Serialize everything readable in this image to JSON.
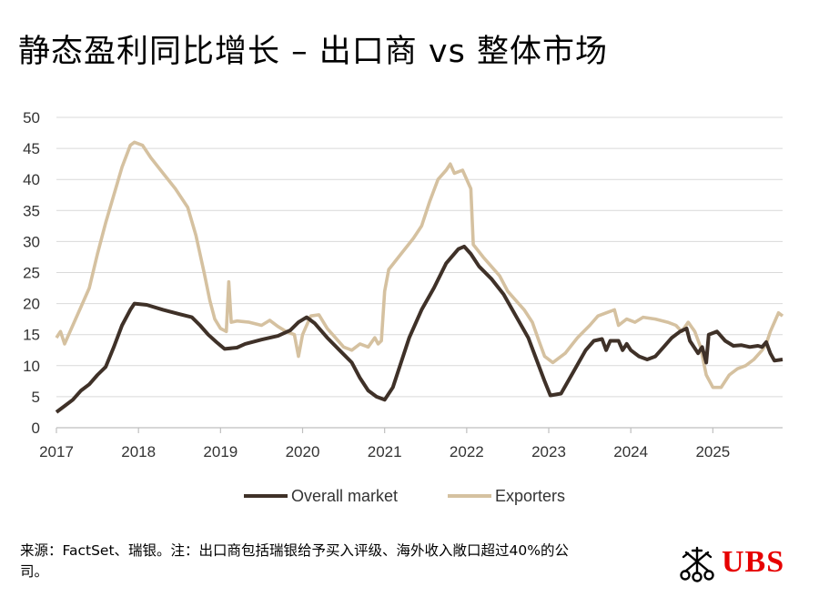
{
  "title": "静态盈利同比增长 – 出口商 vs 整体市场",
  "source_note": "来源：FactSet、瑞银。注：出口商包括瑞银给予买入评级、海外收入敞口超过40%的公司。",
  "logo": {
    "text": "UBS",
    "color": "#e60000",
    "emblem": "ubs-keys-emblem"
  },
  "chart_data": {
    "type": "line",
    "title": "静态盈利同比增长 – 出口商 vs 整体市场",
    "xlabel": "",
    "ylabel": "",
    "xlim": [
      2017.0,
      2025.85
    ],
    "ylim": [
      0,
      50
    ],
    "yticks": [
      "0",
      "5",
      "10",
      "15",
      "20",
      "25",
      "30",
      "35",
      "40",
      "45",
      "50"
    ],
    "xticks": [
      "2017",
      "2018",
      "2019",
      "2020",
      "2021",
      "2022",
      "2023",
      "2024",
      "2025"
    ],
    "grid": true,
    "legend": "bottom-center",
    "series": [
      {
        "name": "Overall market",
        "color": "#3f3128",
        "points": [
          [
            2017.0,
            2.5
          ],
          [
            2017.1,
            3.5
          ],
          [
            2017.2,
            4.5
          ],
          [
            2017.3,
            6.0
          ],
          [
            2017.4,
            7.0
          ],
          [
            2017.5,
            8.5
          ],
          [
            2017.6,
            9.8
          ],
          [
            2017.7,
            13.0
          ],
          [
            2017.8,
            16.5
          ],
          [
            2017.9,
            19.0
          ],
          [
            2017.95,
            20.0
          ],
          [
            2018.1,
            19.8
          ],
          [
            2018.3,
            19.0
          ],
          [
            2018.5,
            18.3
          ],
          [
            2018.65,
            17.8
          ],
          [
            2018.75,
            16.5
          ],
          [
            2018.85,
            15.0
          ],
          [
            2018.95,
            13.8
          ],
          [
            2019.05,
            12.7
          ],
          [
            2019.2,
            12.9
          ],
          [
            2019.3,
            13.5
          ],
          [
            2019.5,
            14.2
          ],
          [
            2019.7,
            14.8
          ],
          [
            2019.85,
            15.7
          ],
          [
            2019.95,
            17.0
          ],
          [
            2020.05,
            17.8
          ],
          [
            2020.15,
            16.8
          ],
          [
            2020.3,
            14.5
          ],
          [
            2020.45,
            12.5
          ],
          [
            2020.6,
            10.5
          ],
          [
            2020.7,
            8.0
          ],
          [
            2020.8,
            6.0
          ],
          [
            2020.9,
            5.0
          ],
          [
            2021.0,
            4.5
          ],
          [
            2021.1,
            6.5
          ],
          [
            2021.2,
            10.5
          ],
          [
            2021.3,
            14.5
          ],
          [
            2021.45,
            19.0
          ],
          [
            2021.6,
            22.5
          ],
          [
            2021.75,
            26.5
          ],
          [
            2021.9,
            28.8
          ],
          [
            2021.97,
            29.2
          ],
          [
            2022.05,
            28.0
          ],
          [
            2022.15,
            26.0
          ],
          [
            2022.3,
            24.0
          ],
          [
            2022.45,
            21.5
          ],
          [
            2022.6,
            18.0
          ],
          [
            2022.75,
            14.5
          ],
          [
            2022.85,
            11.0
          ],
          [
            2022.95,
            7.5
          ],
          [
            2023.02,
            5.2
          ],
          [
            2023.15,
            5.5
          ],
          [
            2023.3,
            9.0
          ],
          [
            2023.45,
            12.5
          ],
          [
            2023.55,
            14.0
          ],
          [
            2023.65,
            14.3
          ],
          [
            2023.7,
            12.5
          ],
          [
            2023.75,
            14.0
          ],
          [
            2023.85,
            14.0
          ],
          [
            2023.9,
            12.5
          ],
          [
            2023.95,
            13.5
          ],
          [
            2024.0,
            12.5
          ],
          [
            2024.1,
            11.5
          ],
          [
            2024.2,
            11.0
          ],
          [
            2024.3,
            11.5
          ],
          [
            2024.4,
            13.0
          ],
          [
            2024.5,
            14.5
          ],
          [
            2024.6,
            15.5
          ],
          [
            2024.68,
            16.0
          ],
          [
            2024.72,
            14.0
          ],
          [
            2024.77,
            13.0
          ],
          [
            2024.82,
            12.0
          ],
          [
            2024.87,
            13.0
          ],
          [
            2024.92,
            10.5
          ],
          [
            2024.95,
            15.0
          ],
          [
            2025.05,
            15.5
          ],
          [
            2025.15,
            14.0
          ],
          [
            2025.25,
            13.2
          ],
          [
            2025.35,
            13.3
          ],
          [
            2025.45,
            13.0
          ],
          [
            2025.55,
            13.2
          ],
          [
            2025.6,
            13.0
          ],
          [
            2025.65,
            13.8
          ],
          [
            2025.7,
            12.0
          ],
          [
            2025.75,
            10.8
          ],
          [
            2025.85,
            11.0
          ]
        ]
      },
      {
        "name": "Exporters",
        "color": "#d5c1a0",
        "points": [
          [
            2017.0,
            14.5
          ],
          [
            2017.05,
            15.5
          ],
          [
            2017.1,
            13.5
          ],
          [
            2017.15,
            15.0
          ],
          [
            2017.2,
            16.5
          ],
          [
            2017.3,
            19.5
          ],
          [
            2017.4,
            22.5
          ],
          [
            2017.5,
            28.0
          ],
          [
            2017.6,
            33.0
          ],
          [
            2017.7,
            37.5
          ],
          [
            2017.8,
            42.0
          ],
          [
            2017.9,
            45.5
          ],
          [
            2017.95,
            46.0
          ],
          [
            2018.05,
            45.5
          ],
          [
            2018.15,
            43.5
          ],
          [
            2018.3,
            41.0
          ],
          [
            2018.45,
            38.5
          ],
          [
            2018.6,
            35.5
          ],
          [
            2018.7,
            31.0
          ],
          [
            2018.8,
            25.0
          ],
          [
            2018.87,
            20.5
          ],
          [
            2018.93,
            17.5
          ],
          [
            2019.0,
            16.0
          ],
          [
            2019.07,
            15.5
          ],
          [
            2019.1,
            23.5
          ],
          [
            2019.13,
            17.0
          ],
          [
            2019.2,
            17.2
          ],
          [
            2019.35,
            17.0
          ],
          [
            2019.5,
            16.5
          ],
          [
            2019.6,
            17.3
          ],
          [
            2019.7,
            16.3
          ],
          [
            2019.8,
            15.5
          ],
          [
            2019.9,
            15.0
          ],
          [
            2019.95,
            11.5
          ],
          [
            2020.0,
            15.0
          ],
          [
            2020.1,
            18.0
          ],
          [
            2020.2,
            18.2
          ],
          [
            2020.3,
            16.0
          ],
          [
            2020.4,
            14.5
          ],
          [
            2020.5,
            13.0
          ],
          [
            2020.6,
            12.5
          ],
          [
            2020.7,
            13.5
          ],
          [
            2020.8,
            13.0
          ],
          [
            2020.88,
            14.5
          ],
          [
            2020.92,
            13.5
          ],
          [
            2020.96,
            14.0
          ],
          [
            2021.0,
            22.0
          ],
          [
            2021.05,
            25.5
          ],
          [
            2021.2,
            28.0
          ],
          [
            2021.35,
            30.5
          ],
          [
            2021.45,
            32.5
          ],
          [
            2021.55,
            36.5
          ],
          [
            2021.65,
            40.0
          ],
          [
            2021.75,
            41.5
          ],
          [
            2021.8,
            42.5
          ],
          [
            2021.85,
            41.0
          ],
          [
            2021.95,
            41.5
          ],
          [
            2022.05,
            38.5
          ],
          [
            2022.08,
            29.5
          ],
          [
            2022.2,
            27.5
          ],
          [
            2022.3,
            26.0
          ],
          [
            2022.4,
            24.5
          ],
          [
            2022.5,
            22.0
          ],
          [
            2022.6,
            20.5
          ],
          [
            2022.7,
            19.0
          ],
          [
            2022.8,
            17.0
          ],
          [
            2022.88,
            14.0
          ],
          [
            2022.95,
            11.5
          ],
          [
            2023.05,
            10.5
          ],
          [
            2023.2,
            12.0
          ],
          [
            2023.35,
            14.5
          ],
          [
            2023.5,
            16.5
          ],
          [
            2023.6,
            18.0
          ],
          [
            2023.7,
            18.5
          ],
          [
            2023.8,
            19.0
          ],
          [
            2023.85,
            16.5
          ],
          [
            2023.95,
            17.5
          ],
          [
            2024.05,
            17.0
          ],
          [
            2024.15,
            17.8
          ],
          [
            2024.3,
            17.5
          ],
          [
            2024.45,
            17.0
          ],
          [
            2024.55,
            16.5
          ],
          [
            2024.62,
            15.5
          ],
          [
            2024.7,
            17.0
          ],
          [
            2024.78,
            15.5
          ],
          [
            2024.85,
            13.0
          ],
          [
            2024.92,
            8.5
          ],
          [
            2025.0,
            6.5
          ],
          [
            2025.1,
            6.5
          ],
          [
            2025.2,
            8.5
          ],
          [
            2025.3,
            9.5
          ],
          [
            2025.4,
            10.0
          ],
          [
            2025.5,
            11.0
          ],
          [
            2025.6,
            12.5
          ],
          [
            2025.65,
            13.5
          ],
          [
            2025.7,
            15.5
          ],
          [
            2025.75,
            17.0
          ],
          [
            2025.8,
            18.5
          ],
          [
            2025.85,
            18.0
          ]
        ]
      }
    ]
  }
}
